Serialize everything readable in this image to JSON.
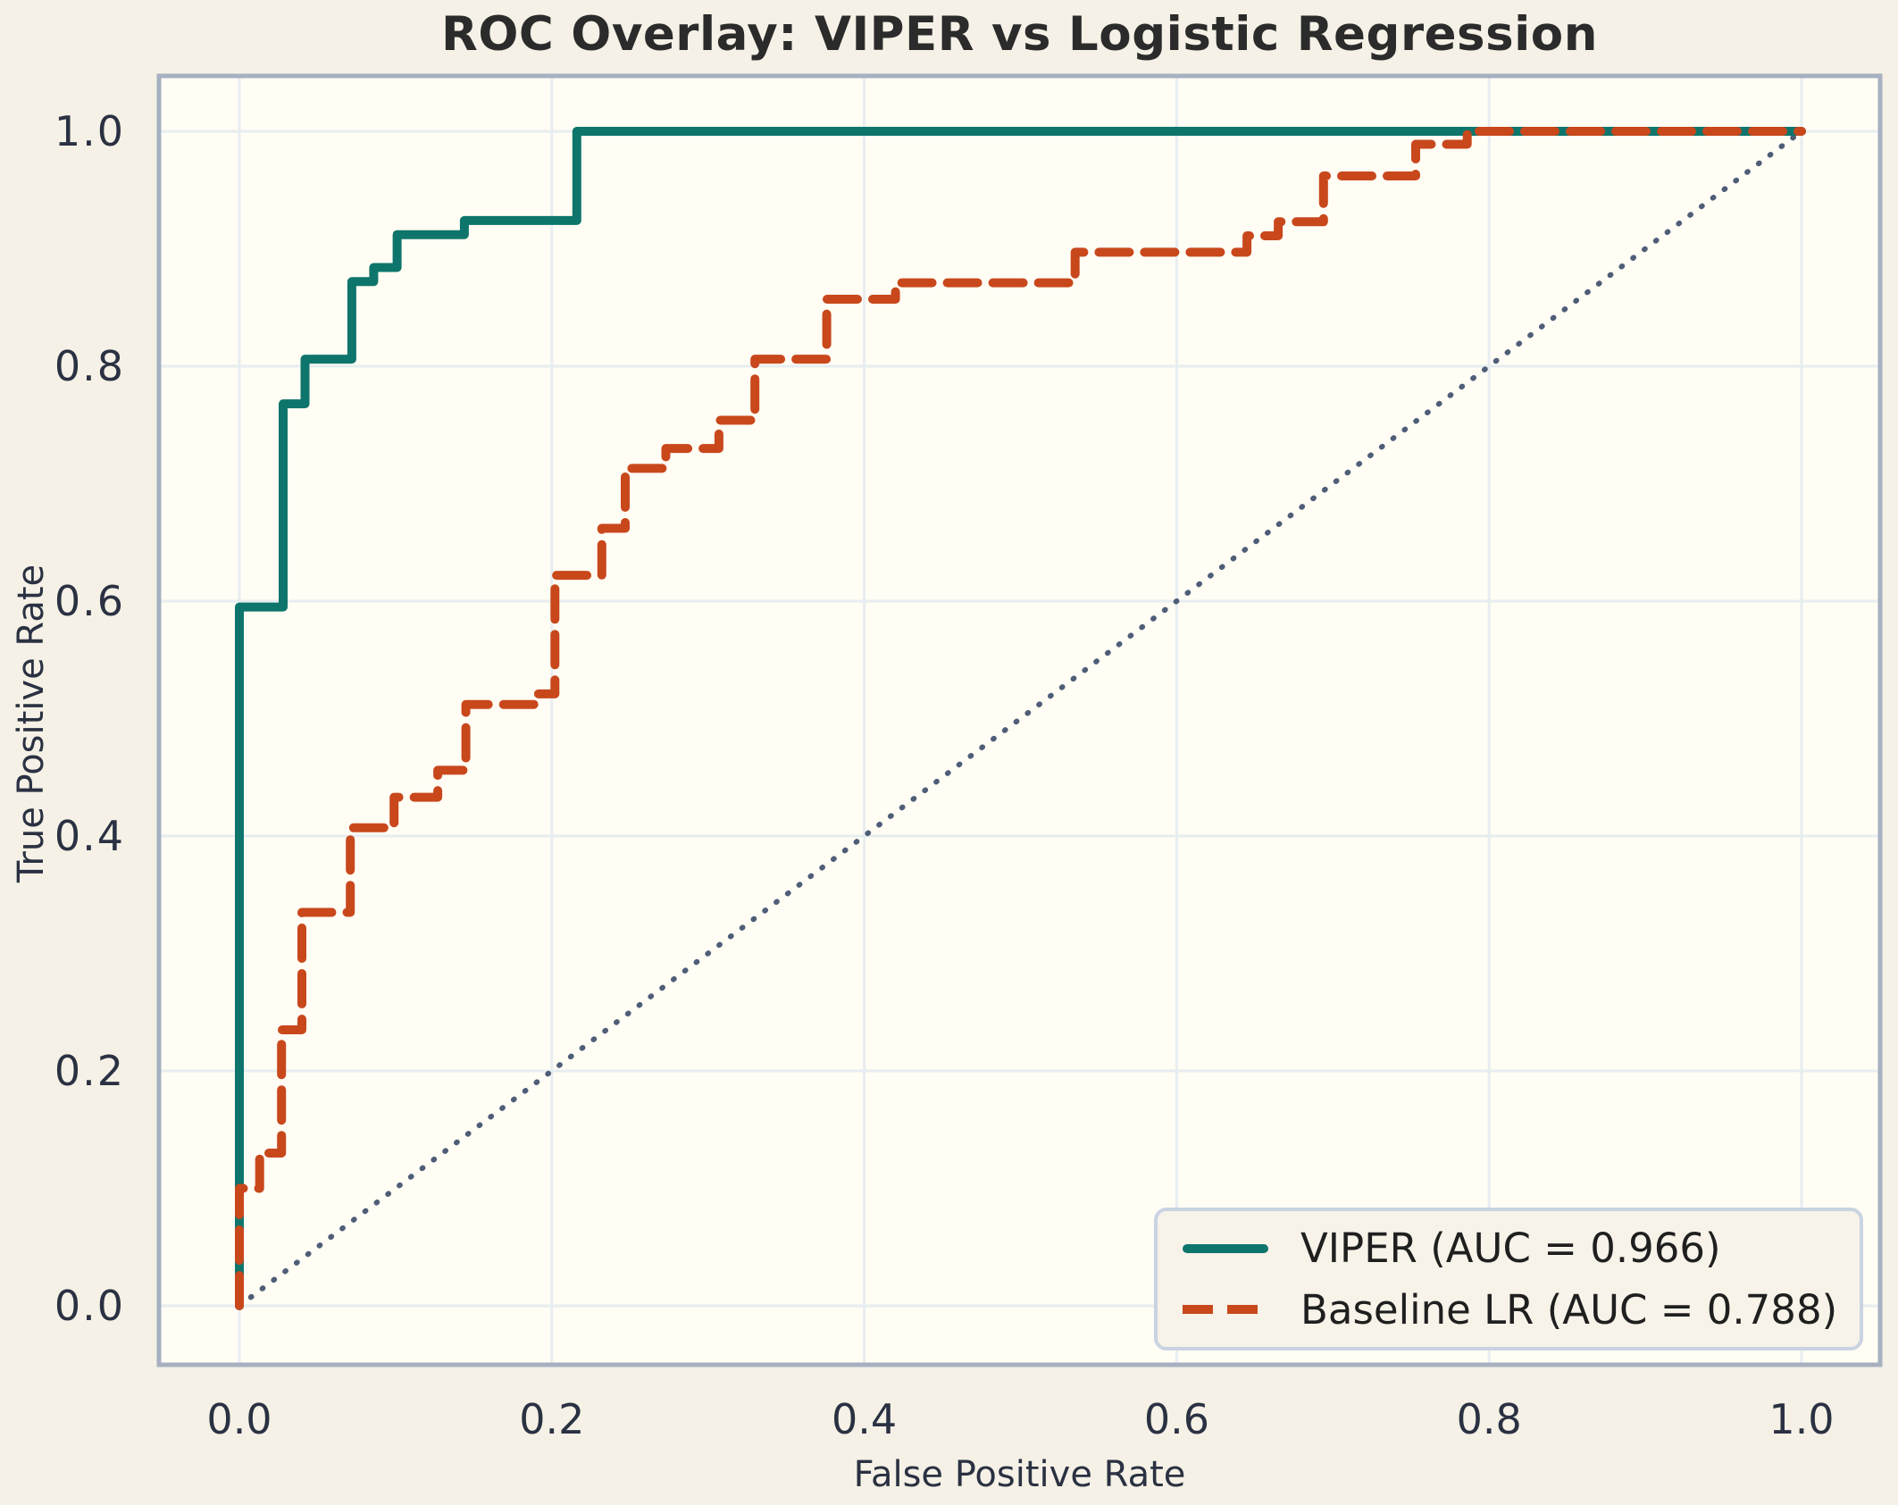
{
  "title": "ROC Overlay: VIPER vs Logistic Regression",
  "chart_data": {
    "type": "line",
    "subtype": "roc-step-overlay",
    "title": "ROC Overlay: VIPER vs Logistic Regression",
    "xlabel": "False Positive Rate",
    "ylabel": "True Positive Rate",
    "xlim": [
      0.0,
      1.0
    ],
    "ylim": [
      0.0,
      1.0
    ],
    "x_ticks": [
      "0.0",
      "0.2",
      "0.4",
      "0.6",
      "0.8",
      "1.0"
    ],
    "y_ticks": [
      "0.0",
      "0.2",
      "0.4",
      "0.6",
      "0.8",
      "1.0"
    ],
    "grid": true,
    "legend_position": "lower right",
    "series": [
      {
        "name": "VIPER (AUC = 0.966)",
        "auc": 0.966,
        "color": "#0e756c",
        "style": "solid",
        "points": [
          [
            0.0,
            0.0
          ],
          [
            0.0,
            0.595
          ],
          [
            0.028,
            0.595
          ],
          [
            0.028,
            0.768
          ],
          [
            0.042,
            0.768
          ],
          [
            0.042,
            0.806
          ],
          [
            0.072,
            0.806
          ],
          [
            0.072,
            0.872
          ],
          [
            0.086,
            0.872
          ],
          [
            0.086,
            0.884
          ],
          [
            0.101,
            0.884
          ],
          [
            0.101,
            0.912
          ],
          [
            0.144,
            0.912
          ],
          [
            0.144,
            0.924
          ],
          [
            0.216,
            0.924
          ],
          [
            0.216,
            1.0
          ],
          [
            1.0,
            1.0
          ]
        ]
      },
      {
        "name": "Baseline LR (AUC = 0.788)",
        "auc": 0.788,
        "color": "#c8481c",
        "style": "dashed",
        "points": [
          [
            0.0,
            0.0
          ],
          [
            0.0,
            0.1
          ],
          [
            0.013,
            0.1
          ],
          [
            0.013,
            0.13
          ],
          [
            0.027,
            0.13
          ],
          [
            0.027,
            0.235
          ],
          [
            0.04,
            0.235
          ],
          [
            0.04,
            0.335
          ],
          [
            0.071,
            0.335
          ],
          [
            0.071,
            0.407
          ],
          [
            0.099,
            0.407
          ],
          [
            0.099,
            0.433
          ],
          [
            0.127,
            0.433
          ],
          [
            0.127,
            0.456
          ],
          [
            0.145,
            0.456
          ],
          [
            0.145,
            0.512
          ],
          [
            0.19,
            0.512
          ],
          [
            0.19,
            0.521
          ],
          [
            0.202,
            0.521
          ],
          [
            0.202,
            0.622
          ],
          [
            0.232,
            0.622
          ],
          [
            0.232,
            0.662
          ],
          [
            0.247,
            0.662
          ],
          [
            0.247,
            0.713
          ],
          [
            0.273,
            0.713
          ],
          [
            0.273,
            0.73
          ],
          [
            0.307,
            0.73
          ],
          [
            0.307,
            0.754
          ],
          [
            0.33,
            0.754
          ],
          [
            0.33,
            0.806
          ],
          [
            0.376,
            0.806
          ],
          [
            0.376,
            0.857
          ],
          [
            0.42,
            0.857
          ],
          [
            0.42,
            0.871
          ],
          [
            0.535,
            0.871
          ],
          [
            0.535,
            0.897
          ],
          [
            0.645,
            0.897
          ],
          [
            0.645,
            0.911
          ],
          [
            0.665,
            0.911
          ],
          [
            0.665,
            0.923
          ],
          [
            0.694,
            0.923
          ],
          [
            0.694,
            0.962
          ],
          [
            0.753,
            0.962
          ],
          [
            0.753,
            0.989
          ],
          [
            0.786,
            0.989
          ],
          [
            0.786,
            1.0
          ],
          [
            1.0,
            1.0
          ]
        ]
      }
    ],
    "reference_line": {
      "name": "chance-diagonal",
      "style": "dotted",
      "color": "#4f5e78",
      "from": [
        0.0,
        0.0
      ],
      "to": [
        1.0,
        1.0
      ]
    }
  },
  "legend": {
    "items": [
      {
        "label": "VIPER (AUC = 0.966)"
      },
      {
        "label": "Baseline LR (AUC = 0.788)"
      }
    ]
  },
  "colors": {
    "figure_background": "#f5f1e6",
    "axes_background": "#fffdf4",
    "gridline": "#e7edf0",
    "spine": "#a6b0c0",
    "viper_line": "#0e756c",
    "baseline_line": "#c8481c",
    "diagonal": "#4f5e78",
    "tick_text": "#2a3142",
    "title_text": "#2b2b2b"
  }
}
